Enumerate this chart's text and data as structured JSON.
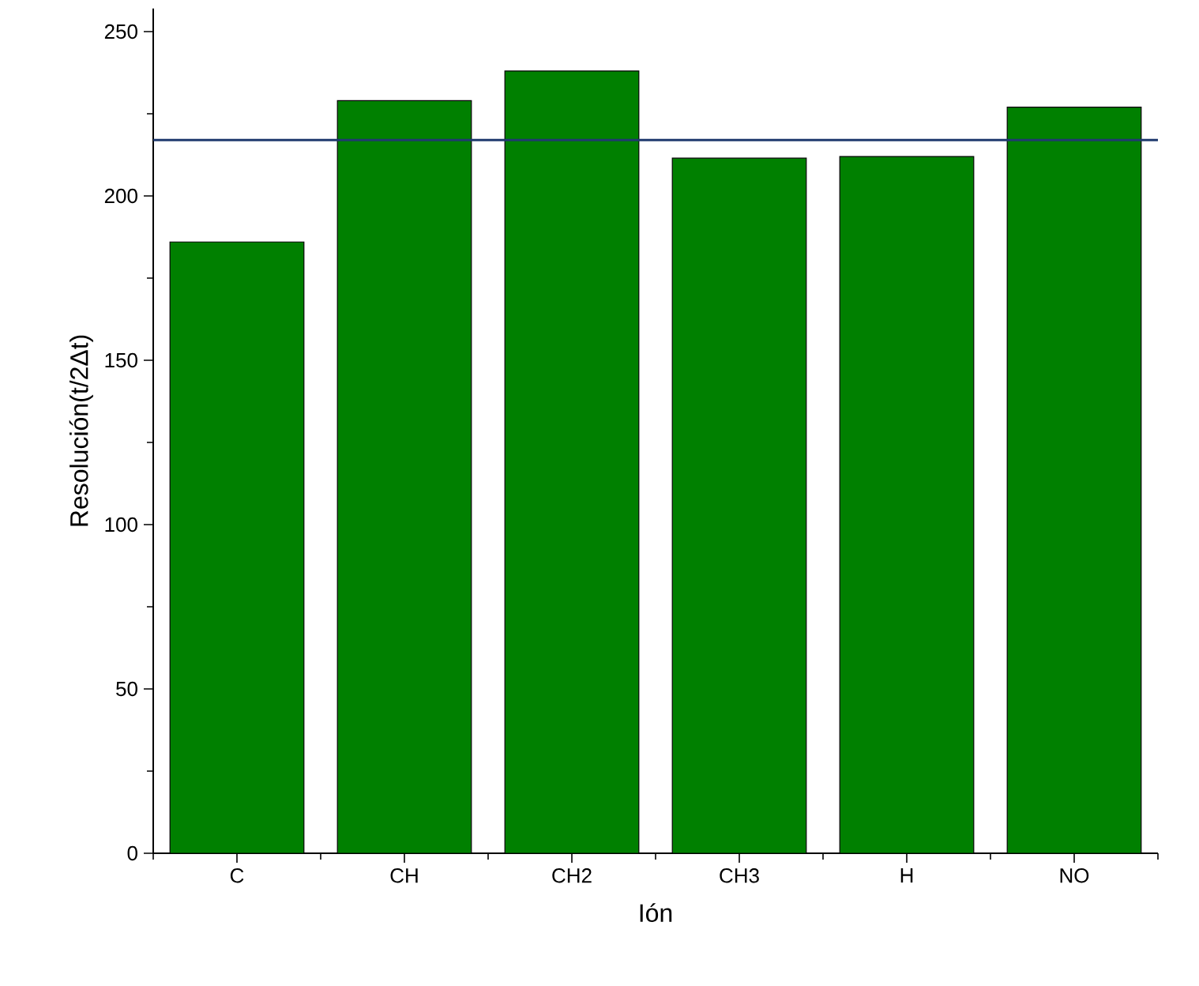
{
  "chart_data": {
    "type": "bar",
    "xlabel": "Ión",
    "ylabel": "Resolución(t/2Δt)",
    "categories": [
      "C",
      "CH",
      "CH2",
      "CH3",
      "H",
      "NO"
    ],
    "values": [
      186,
      229,
      238,
      211.5,
      212,
      227
    ],
    "color": "#008000",
    "ylim": [
      0,
      257
    ],
    "yticks": [
      0,
      50,
      100,
      150,
      200,
      250
    ],
    "ref_lines": [
      {
        "axis": "y",
        "value": 217,
        "color": "#1f3a6e"
      }
    ]
  }
}
